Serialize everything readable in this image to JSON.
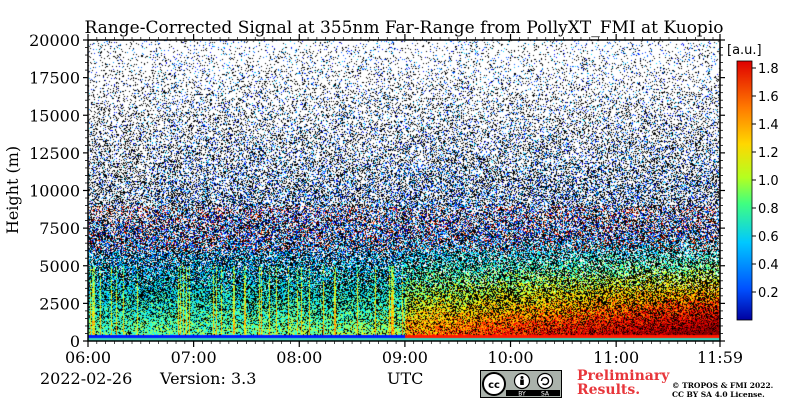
{
  "chart_data": {
    "type": "heatmap",
    "title": "Range-Corrected Signal at 355nm Far-Range from PollyXT_FMI at Kuopio",
    "xlabel": "UTC",
    "ylabel": "Height (m)",
    "x_tick_labels": [
      "06:00",
      "07:00",
      "08:00",
      "09:00",
      "10:00",
      "11:00",
      "11:59"
    ],
    "x_ticks_hours": [
      6.0,
      7.0,
      8.0,
      9.0,
      10.0,
      11.0,
      11.983
    ],
    "xlim_hours": [
      6.0,
      11.983
    ],
    "y_ticks": [
      0,
      2500,
      5000,
      7500,
      10000,
      12500,
      15000,
      17500,
      20000
    ],
    "ylim": [
      0,
      20000
    ],
    "colorbar": {
      "label": "[a.u.]",
      "ticks": [
        0.2,
        0.4,
        0.6,
        0.8,
        1.0,
        1.2,
        1.4,
        1.6,
        1.8
      ],
      "tick_labels": [
        "0.2",
        "0.4",
        "0.6",
        "0.8",
        "1.0",
        "1.2",
        "1.4",
        "1.6",
        "1.8"
      ],
      "range": [
        0.0,
        1.85
      ],
      "colormap": "jet"
    },
    "background_color": "#000000",
    "noise_color": "#ffffff"
  },
  "footer": {
    "date": "2022-02-26",
    "version": "Version: 3.3",
    "utc": "UTC",
    "preliminary_line1": "Preliminary",
    "preliminary_line2": "Results.",
    "copyright_line1": "© TROPOS & FMI 2022.",
    "copyright_line2": "CC BY SA 4.0 License.",
    "cc_badge": {
      "by": "BY",
      "sa": "SA"
    }
  }
}
